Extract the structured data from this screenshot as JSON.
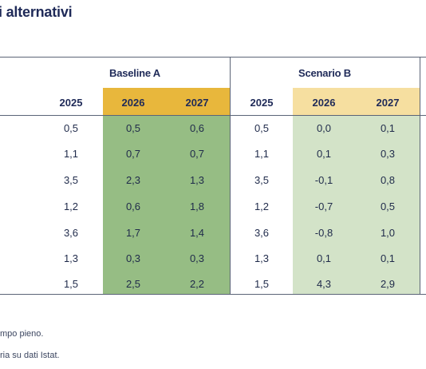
{
  "title": "i alternativi",
  "colors": {
    "baseline_header": "#e8b73c",
    "baseline_fill": "#96bd84",
    "scenario_header": "#f6dfa0",
    "scenario_fill": "#d3e3c8",
    "rule": "#5b6477",
    "text": "#1f2a58"
  },
  "groups": [
    {
      "label": "Baseline A",
      "years": [
        "2025",
        "2026",
        "2027"
      ]
    },
    {
      "label": "Scenario B",
      "years": [
        "2025",
        "2026",
        "2027"
      ]
    }
  ],
  "rows": [
    {
      "baseline": [
        "0,5",
        "0,5",
        "0,6"
      ],
      "scenario": [
        "0,5",
        "0,0",
        "0,1"
      ]
    },
    {
      "baseline": [
        "1,1",
        "0,7",
        "0,7"
      ],
      "scenario": [
        "1,1",
        "0,1",
        "0,3"
      ]
    },
    {
      "baseline": [
        "3,5",
        "2,3",
        "1,3"
      ],
      "scenario": [
        "3,5",
        "-0,1",
        "0,8"
      ]
    },
    {
      "baseline": [
        "1,2",
        "0,6",
        "1,8"
      ],
      "scenario": [
        "1,2",
        "-0,7",
        "0,5"
      ]
    },
    {
      "baseline": [
        "3,6",
        "1,7",
        "1,4"
      ],
      "scenario": [
        "3,6",
        "-0,8",
        "1,0"
      ]
    },
    {
      "baseline": [
        "1,3",
        "0,3",
        "0,3"
      ],
      "scenario": [
        "1,3",
        "0,1",
        "0,1"
      ]
    },
    {
      "baseline": [
        "1,5",
        "2,5",
        "2,2"
      ],
      "scenario": [
        "1,5",
        "4,3",
        "2,9"
      ]
    }
  ],
  "notes": [
    "mpo pieno.",
    "ria su dati Istat."
  ]
}
